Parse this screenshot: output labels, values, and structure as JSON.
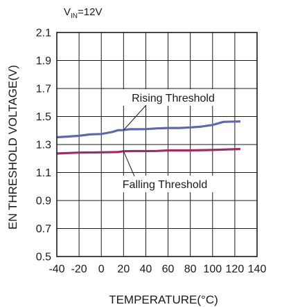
{
  "chart_data": {
    "type": "line",
    "condition": {
      "prefix": "V",
      "subscript": "IN",
      "suffix": "=12V"
    },
    "xlabel": "TEMPERATURE(°C)",
    "ylabel": "EN THRESHOLD VOLTAGE(V)",
    "xlim": [
      -40,
      140
    ],
    "ylim": [
      0.5,
      2.1
    ],
    "x_ticks": [
      "-40",
      "-20",
      "0",
      "20",
      "40",
      "60",
      "80",
      "100",
      "120",
      "140"
    ],
    "y_ticks": [
      "0.5",
      "0.7",
      "0.9",
      "1.1",
      "1.3",
      "1.5",
      "1.7",
      "1.9",
      "2.1"
    ],
    "grid": true,
    "series": [
      {
        "name": "Rising Threshold",
        "color": "#6068a8",
        "points": [
          [
            -40,
            1.352
          ],
          [
            -30,
            1.357
          ],
          [
            -20,
            1.362
          ],
          [
            -10,
            1.372
          ],
          [
            0,
            1.375
          ],
          [
            10,
            1.39
          ],
          [
            15,
            1.402
          ],
          [
            20,
            1.403
          ],
          [
            25,
            1.409
          ],
          [
            30,
            1.409
          ],
          [
            40,
            1.41
          ],
          [
            50,
            1.415
          ],
          [
            60,
            1.418
          ],
          [
            70,
            1.418
          ],
          [
            80,
            1.422
          ],
          [
            90,
            1.428
          ],
          [
            100,
            1.44
          ],
          [
            110,
            1.462
          ],
          [
            120,
            1.464
          ],
          [
            125,
            1.465
          ]
        ]
      },
      {
        "name": "Falling Threshold",
        "color": "#9a2f63",
        "points": [
          [
            -40,
            1.236
          ],
          [
            -20,
            1.242
          ],
          [
            0,
            1.244
          ],
          [
            15,
            1.246
          ],
          [
            20,
            1.252
          ],
          [
            30,
            1.253
          ],
          [
            40,
            1.253
          ],
          [
            50,
            1.254
          ],
          [
            60,
            1.258
          ],
          [
            80,
            1.258
          ],
          [
            100,
            1.261
          ],
          [
            110,
            1.264
          ],
          [
            125,
            1.268
          ]
        ]
      }
    ]
  }
}
